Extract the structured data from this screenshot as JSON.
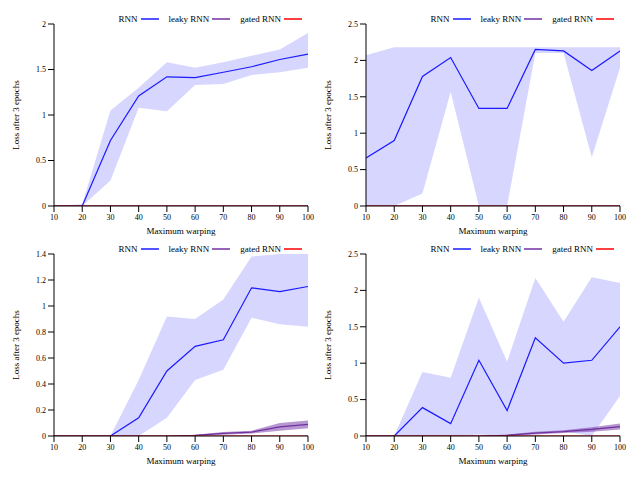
{
  "chart_data": [
    {
      "type": "line",
      "x_label": "Maximum warping",
      "y_label": "Loss after 3 epochs",
      "x": [
        10,
        20,
        30,
        40,
        50,
        60,
        70,
        80,
        90,
        100
      ],
      "xlim": [
        10,
        100
      ],
      "xticks": [
        10,
        20,
        30,
        40,
        50,
        60,
        70,
        80,
        90,
        100
      ],
      "ylim": [
        0,
        2
      ],
      "yticks": [
        0,
        0.5,
        1,
        1.5,
        2
      ],
      "grid": false,
      "legend": "top-right",
      "series": [
        {
          "name": "RNN",
          "color": "#1a1aff",
          "values": [
            0,
            0,
            0.72,
            1.21,
            1.42,
            1.41,
            1.47,
            1.53,
            1.61,
            1.67
          ],
          "lower": [
            0,
            0,
            0.28,
            1.08,
            1.04,
            1.33,
            1.34,
            1.44,
            1.47,
            1.52
          ],
          "upper": [
            0,
            0.02,
            1.05,
            1.3,
            1.58,
            1.52,
            1.58,
            1.65,
            1.72,
            1.9
          ]
        },
        {
          "name": "leaky RNN",
          "color": "#7030a0",
          "values": [
            0,
            0,
            0,
            0,
            0,
            0,
            0,
            0,
            0,
            0
          ]
        },
        {
          "name": "gated RNN",
          "color": "#ff0000",
          "values": [
            0,
            0,
            0,
            0,
            0,
            0,
            0,
            0,
            0,
            0
          ]
        }
      ]
    },
    {
      "type": "line",
      "x_label": "Maximum warping",
      "y_label": "Loss after 3 epochs",
      "x": [
        10,
        20,
        30,
        40,
        50,
        60,
        70,
        80,
        90,
        100
      ],
      "xlim": [
        10,
        100
      ],
      "xticks": [
        10,
        20,
        30,
        40,
        50,
        60,
        70,
        80,
        90,
        100
      ],
      "ylim": [
        0,
        2.5
      ],
      "yticks": [
        0,
        0.5,
        1,
        1.5,
        2,
        2.5
      ],
      "grid": false,
      "legend": "top-right",
      "series": [
        {
          "name": "RNN",
          "color": "#1a1aff",
          "values": [
            0.66,
            0.9,
            1.78,
            2.04,
            1.34,
            1.34,
            2.15,
            2.13,
            1.86,
            2.13
          ],
          "lower": [
            0,
            0,
            0.17,
            1.57,
            0,
            0,
            2.1,
            2.1,
            0.67,
            1.9
          ],
          "upper": [
            2.07,
            2.18,
            2.18,
            2.18,
            2.18,
            2.18,
            2.18,
            2.18,
            2.18,
            2.18
          ]
        },
        {
          "name": "leaky RNN",
          "color": "#7030a0",
          "values": [
            0,
            0,
            0,
            0,
            0,
            0,
            0,
            0,
            0,
            0
          ]
        },
        {
          "name": "gated RNN",
          "color": "#ff0000",
          "values": [
            0,
            0,
            0,
            0,
            0,
            0,
            0,
            0,
            0,
            0
          ]
        }
      ]
    },
    {
      "type": "line",
      "x_label": "Maximum warping",
      "y_label": "Loss after 3 epochs",
      "x": [
        10,
        20,
        30,
        40,
        50,
        60,
        70,
        80,
        90,
        100
      ],
      "xlim": [
        10,
        100
      ],
      "xticks": [
        10,
        20,
        30,
        40,
        50,
        60,
        70,
        80,
        90,
        100
      ],
      "ylim": [
        0,
        1.4
      ],
      "yticks": [
        0,
        0.2,
        0.4,
        0.6,
        0.8,
        1,
        1.2,
        1.4
      ],
      "grid": false,
      "legend": "top-right",
      "series": [
        {
          "name": "RNN",
          "color": "#1a1aff",
          "values": [
            0,
            0,
            0,
            0.14,
            0.5,
            0.69,
            0.74,
            1.14,
            1.11,
            1.15
          ],
          "lower": [
            0,
            0,
            0,
            0,
            0.14,
            0.43,
            0.51,
            0.91,
            0.86,
            0.84
          ],
          "upper": [
            0,
            0,
            0,
            0.43,
            0.92,
            0.9,
            1.05,
            1.38,
            1.4,
            1.4
          ]
        },
        {
          "name": "leaky RNN",
          "color": "#7030a0",
          "values": [
            0,
            0,
            0,
            0,
            0,
            0.005,
            0.02,
            0.03,
            0.07,
            0.09
          ],
          "lower": [
            0,
            0,
            0,
            0,
            0,
            0,
            0.01,
            0.02,
            0.04,
            0.06
          ],
          "upper": [
            0,
            0,
            0,
            0,
            0,
            0.01,
            0.03,
            0.04,
            0.1,
            0.12
          ]
        },
        {
          "name": "gated RNN",
          "color": "#ff0000",
          "values": [
            0,
            0,
            0,
            0,
            0,
            0,
            0,
            0,
            0,
            0
          ]
        }
      ]
    },
    {
      "type": "line",
      "x_label": "Maximum warping",
      "y_label": "Loss after 3 epochs",
      "x": [
        10,
        20,
        30,
        40,
        50,
        60,
        70,
        80,
        90,
        100
      ],
      "xlim": [
        10,
        100
      ],
      "xticks": [
        10,
        20,
        30,
        40,
        50,
        60,
        70,
        80,
        90,
        100
      ],
      "ylim": [
        0,
        2.5
      ],
      "yticks": [
        0,
        0.5,
        1,
        1.5,
        2,
        2.5
      ],
      "grid": false,
      "legend": "top-right",
      "series": [
        {
          "name": "RNN",
          "color": "#1a1aff",
          "values": [
            0,
            0,
            0.39,
            0.17,
            1.04,
            0.35,
            1.35,
            1.0,
            1.04,
            1.5
          ],
          "lower": [
            0,
            0,
            0,
            0,
            0.02,
            0,
            0.03,
            0.07,
            0,
            0.55
          ],
          "upper": [
            0,
            0,
            0.88,
            0.8,
            1.9,
            1.02,
            2.17,
            1.57,
            2.18,
            2.1
          ]
        },
        {
          "name": "leaky RNN",
          "color": "#7030a0",
          "values": [
            0,
            0,
            0,
            0,
            0,
            0.01,
            0.04,
            0.06,
            0.09,
            0.13
          ],
          "lower": [
            0,
            0,
            0,
            0,
            0,
            0,
            0.02,
            0.04,
            0.06,
            0.09
          ],
          "upper": [
            0,
            0,
            0,
            0,
            0,
            0.02,
            0.06,
            0.08,
            0.12,
            0.17
          ]
        },
        {
          "name": "gated RNN",
          "color": "#ff0000",
          "values": [
            0,
            0,
            0,
            0,
            0,
            0,
            0,
            0,
            0,
            0
          ]
        }
      ]
    }
  ]
}
